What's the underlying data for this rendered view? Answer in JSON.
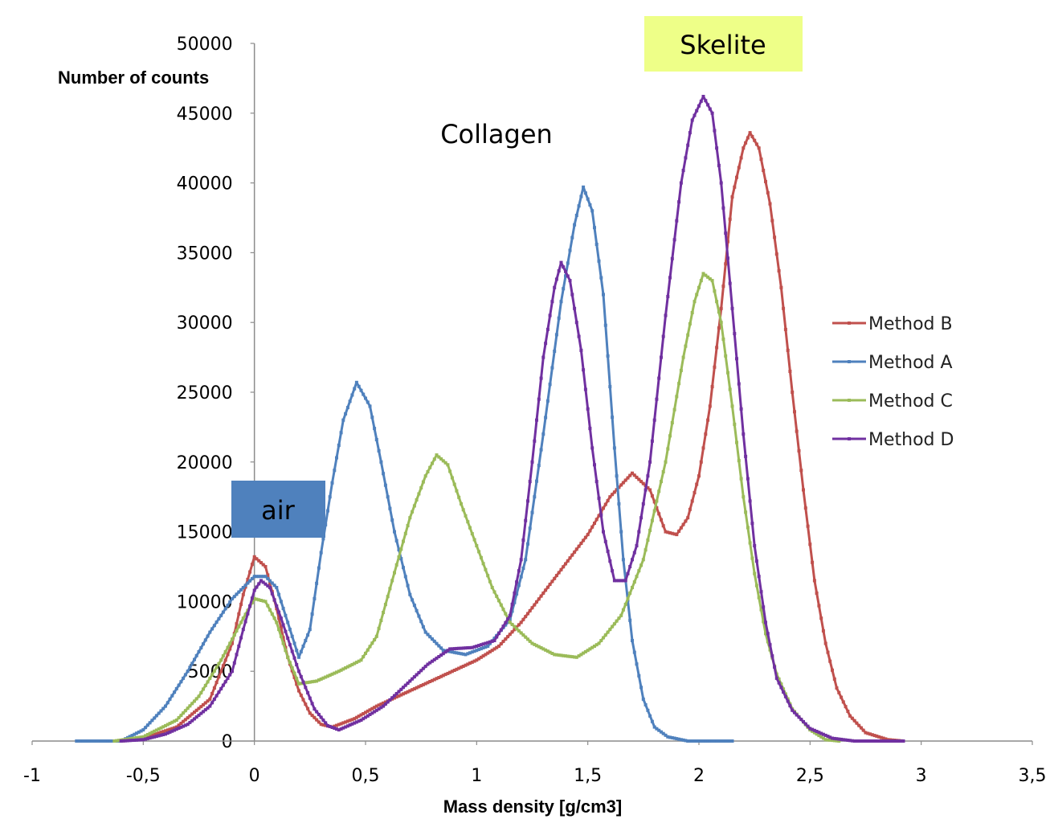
{
  "chart_data": {
    "type": "line",
    "xlabel": "Mass density [g/cm3]",
    "ylabel": "Number of counts",
    "xlim": [
      -1,
      3.5
    ],
    "ylim": [
      0,
      50000
    ],
    "x_ticks": [
      -1,
      -0.5,
      0,
      0.5,
      1,
      1.5,
      2,
      2.5,
      3,
      3.5
    ],
    "x_tick_labels": [
      "-1",
      "-0,5",
      "0",
      "0,5",
      "1",
      "1,5",
      "2",
      "2,5",
      "3",
      "3,5"
    ],
    "y_ticks": [
      0,
      5000,
      10000,
      15000,
      20000,
      25000,
      30000,
      35000,
      40000,
      45000,
      50000
    ],
    "y_tick_labels": [
      "0",
      "5000",
      "10000",
      "15000",
      "20000",
      "25000",
      "30000",
      "35000",
      "40000",
      "45000",
      "50000"
    ],
    "grid": false,
    "legend": "right",
    "series": [
      {
        "name": "Method B",
        "color": "#C0504D",
        "points": [
          [
            -0.6,
            0
          ],
          [
            -0.5,
            200
          ],
          [
            -0.35,
            1000
          ],
          [
            -0.2,
            3000
          ],
          [
            -0.1,
            7000
          ],
          [
            -0.05,
            10500
          ],
          [
            0,
            13200
          ],
          [
            0.05,
            12500
          ],
          [
            0.1,
            9500
          ],
          [
            0.15,
            6000
          ],
          [
            0.2,
            3600
          ],
          [
            0.25,
            2000
          ],
          [
            0.3,
            1200
          ],
          [
            0.35,
            1000
          ],
          [
            0.45,
            1600
          ],
          [
            0.55,
            2500
          ],
          [
            0.7,
            3600
          ],
          [
            0.85,
            4700
          ],
          [
            1.0,
            5800
          ],
          [
            1.1,
            6800
          ],
          [
            1.2,
            8500
          ],
          [
            1.3,
            10600
          ],
          [
            1.4,
            12700
          ],
          [
            1.5,
            14800
          ],
          [
            1.6,
            17500
          ],
          [
            1.7,
            19200
          ],
          [
            1.78,
            18000
          ],
          [
            1.85,
            15000
          ],
          [
            1.9,
            14800
          ],
          [
            1.95,
            16000
          ],
          [
            2.0,
            19000
          ],
          [
            2.05,
            24000
          ],
          [
            2.1,
            31000
          ],
          [
            2.15,
            39000
          ],
          [
            2.2,
            42500
          ],
          [
            2.23,
            43600
          ],
          [
            2.27,
            42500
          ],
          [
            2.32,
            38500
          ],
          [
            2.37,
            32500
          ],
          [
            2.42,
            25000
          ],
          [
            2.47,
            18000
          ],
          [
            2.52,
            11500
          ],
          [
            2.57,
            7000
          ],
          [
            2.62,
            3800
          ],
          [
            2.68,
            1800
          ],
          [
            2.75,
            600
          ],
          [
            2.85,
            100
          ],
          [
            2.92,
            0
          ]
        ]
      },
      {
        "name": "Method A",
        "color": "#4F81BD",
        "points": [
          [
            -0.8,
            0
          ],
          [
            -0.6,
            0
          ],
          [
            -0.5,
            800
          ],
          [
            -0.4,
            2500
          ],
          [
            -0.3,
            5000
          ],
          [
            -0.2,
            7800
          ],
          [
            -0.1,
            10200
          ],
          [
            0,
            11800
          ],
          [
            0.05,
            11800
          ],
          [
            0.1,
            11000
          ],
          [
            0.15,
            8500
          ],
          [
            0.2,
            6000
          ],
          [
            0.25,
            8000
          ],
          [
            0.3,
            13500
          ],
          [
            0.35,
            18500
          ],
          [
            0.4,
            23000
          ],
          [
            0.46,
            25700
          ],
          [
            0.52,
            24000
          ],
          [
            0.57,
            20000
          ],
          [
            0.63,
            15000
          ],
          [
            0.7,
            10500
          ],
          [
            0.77,
            7800
          ],
          [
            0.85,
            6500
          ],
          [
            0.95,
            6200
          ],
          [
            1.05,
            6800
          ],
          [
            1.15,
            8700
          ],
          [
            1.22,
            13000
          ],
          [
            1.3,
            22000
          ],
          [
            1.38,
            31500
          ],
          [
            1.44,
            37000
          ],
          [
            1.48,
            39700
          ],
          [
            1.52,
            38000
          ],
          [
            1.57,
            32000
          ],
          [
            1.62,
            21000
          ],
          [
            1.66,
            13000
          ],
          [
            1.7,
            7200
          ],
          [
            1.75,
            3000
          ],
          [
            1.8,
            1000
          ],
          [
            1.86,
            300
          ],
          [
            1.95,
            0
          ],
          [
            2.15,
            0
          ]
        ]
      },
      {
        "name": "Method C",
        "color": "#9BBB59",
        "points": [
          [
            -0.63,
            0
          ],
          [
            -0.5,
            300
          ],
          [
            -0.35,
            1500
          ],
          [
            -0.25,
            3200
          ],
          [
            -0.15,
            5800
          ],
          [
            -0.05,
            8800
          ],
          [
            0,
            10200
          ],
          [
            0.05,
            10000
          ],
          [
            0.1,
            8500
          ],
          [
            0.15,
            6000
          ],
          [
            0.2,
            4100
          ],
          [
            0.28,
            4300
          ],
          [
            0.38,
            5000
          ],
          [
            0.48,
            5800
          ],
          [
            0.55,
            7500
          ],
          [
            0.62,
            11500
          ],
          [
            0.7,
            16000
          ],
          [
            0.77,
            19000
          ],
          [
            0.82,
            20500
          ],
          [
            0.87,
            19800
          ],
          [
            0.93,
            17000
          ],
          [
            1.0,
            14000
          ],
          [
            1.07,
            11000
          ],
          [
            1.15,
            8500
          ],
          [
            1.25,
            7000
          ],
          [
            1.35,
            6200
          ],
          [
            1.45,
            6000
          ],
          [
            1.55,
            7000
          ],
          [
            1.65,
            9000
          ],
          [
            1.75,
            13000
          ],
          [
            1.85,
            20000
          ],
          [
            1.93,
            27500
          ],
          [
            1.98,
            31500
          ],
          [
            2.02,
            33500
          ],
          [
            2.06,
            33000
          ],
          [
            2.1,
            30000
          ],
          [
            2.15,
            24000
          ],
          [
            2.2,
            17500
          ],
          [
            2.25,
            12000
          ],
          [
            2.3,
            7700
          ],
          [
            2.35,
            4800
          ],
          [
            2.42,
            2300
          ],
          [
            2.5,
            800
          ],
          [
            2.57,
            100
          ],
          [
            2.63,
            0
          ]
        ]
      },
      {
        "name": "Method D",
        "color": "#7030A0",
        "points": [
          [
            -0.6,
            0
          ],
          [
            -0.5,
            100
          ],
          [
            -0.4,
            500
          ],
          [
            -0.3,
            1200
          ],
          [
            -0.2,
            2500
          ],
          [
            -0.1,
            5000
          ],
          [
            -0.05,
            8000
          ],
          [
            0,
            10800
          ],
          [
            0.03,
            11500
          ],
          [
            0.07,
            11000
          ],
          [
            0.12,
            8800
          ],
          [
            0.2,
            5000
          ],
          [
            0.27,
            2300
          ],
          [
            0.33,
            1100
          ],
          [
            0.38,
            800
          ],
          [
            0.48,
            1500
          ],
          [
            0.58,
            2500
          ],
          [
            0.68,
            4000
          ],
          [
            0.78,
            5500
          ],
          [
            0.88,
            6600
          ],
          [
            0.98,
            6700
          ],
          [
            1.08,
            7200
          ],
          [
            1.15,
            9000
          ],
          [
            1.2,
            13000
          ],
          [
            1.25,
            20000
          ],
          [
            1.3,
            27500
          ],
          [
            1.35,
            32500
          ],
          [
            1.38,
            34300
          ],
          [
            1.42,
            33000
          ],
          [
            1.47,
            28000
          ],
          [
            1.52,
            21000
          ],
          [
            1.57,
            15000
          ],
          [
            1.62,
            11500
          ],
          [
            1.67,
            11500
          ],
          [
            1.72,
            14000
          ],
          [
            1.78,
            20000
          ],
          [
            1.85,
            30500
          ],
          [
            1.92,
            40000
          ],
          [
            1.97,
            44500
          ],
          [
            2.02,
            46200
          ],
          [
            2.06,
            45000
          ],
          [
            2.1,
            40000
          ],
          [
            2.15,
            31000
          ],
          [
            2.2,
            22000
          ],
          [
            2.25,
            14000
          ],
          [
            2.3,
            8500
          ],
          [
            2.35,
            4500
          ],
          [
            2.42,
            2200
          ],
          [
            2.5,
            900
          ],
          [
            2.6,
            200
          ],
          [
            2.7,
            0
          ],
          [
            2.92,
            0
          ]
        ]
      }
    ],
    "annotations": [
      {
        "text": "Collagen"
      },
      {
        "text": "Skelite",
        "color": "#EEFF88"
      },
      {
        "text": "air",
        "color": "#4F81BD"
      }
    ]
  }
}
